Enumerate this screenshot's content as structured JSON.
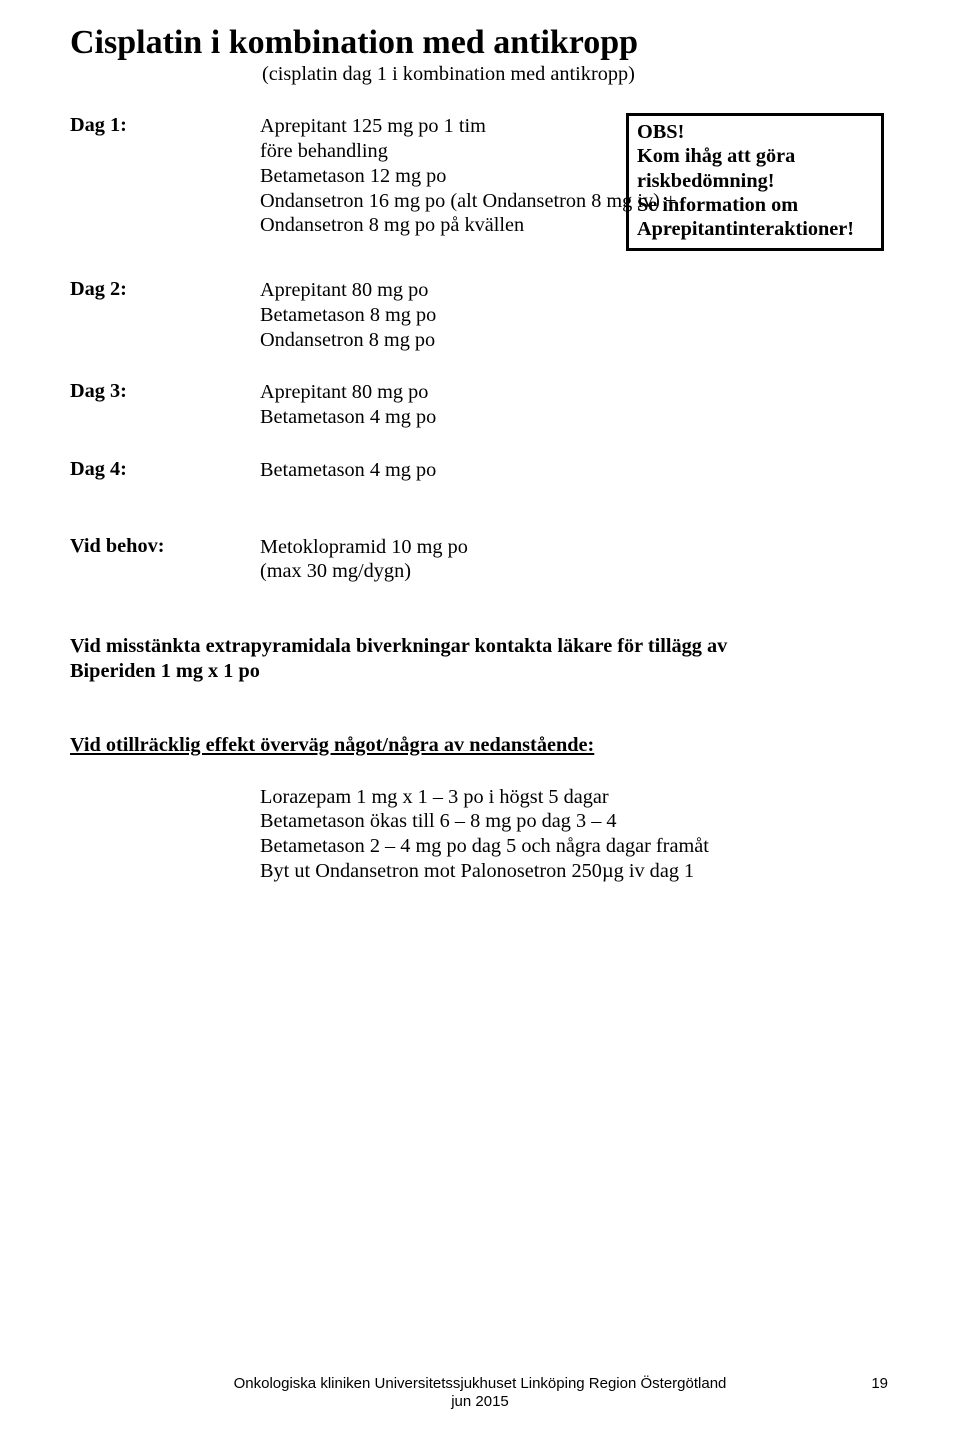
{
  "title": "Cisplatin i kombination med antikropp",
  "subtitle": "(cisplatin dag 1 i kombination med antikropp)",
  "callout": {
    "l1": "OBS!",
    "l2": "Kom ihåg att göra",
    "l3": "riskbedömning!",
    "l4": "Se information om",
    "l5": "Aprepitantinteraktioner!"
  },
  "day1": {
    "label": "Dag 1:",
    "l1": "Aprepitant 125 mg po 1 tim",
    "l2": "före behandling",
    "l3": "Betametason 12 mg po",
    "l4": "Ondansetron 16 mg po (alt Ondansetron 8 mg iv) +",
    "l5": "Ondansetron 8 mg po på kvällen"
  },
  "day2": {
    "label": "Dag 2:",
    "l1": "Aprepitant 80 mg po",
    "l2": "Betametason 8 mg po",
    "l3": "Ondansetron 8 mg po"
  },
  "day3": {
    "label": "Dag 3:",
    "l1": "Aprepitant 80 mg po",
    "l2": "Betametason 4 mg po"
  },
  "day4": {
    "label": "Dag 4:",
    "l1": "Betametason 4 mg po"
  },
  "behov": {
    "label": "Vid behov:",
    "l1": "Metoklopramid 10 mg po",
    "l2": "(max 30 mg/dygn)"
  },
  "para1": {
    "l1": "Vid misstänkta extrapyramidala biverkningar kontakta läkare för tillägg av",
    "l2": "Biperiden 1 mg x 1 po"
  },
  "para2": "Vid otillräcklig effekt överväg något/några av nedanstående:",
  "bottom": {
    "l1": "Lorazepam 1 mg x 1 – 3 po i högst 5 dagar",
    "l2": "Betametason ökas till 6 – 8 mg po dag 3 – 4",
    "l3": "Betametason 2 – 4 mg po dag 5 och några dagar framåt",
    "l4": "Byt ut Ondansetron mot Palonosetron 250µg iv dag 1"
  },
  "footer": {
    "l1": "Onkologiska kliniken Universitetssjukhuset Linköping Region Östergötland",
    "l2": "jun 2015",
    "page": "19"
  }
}
